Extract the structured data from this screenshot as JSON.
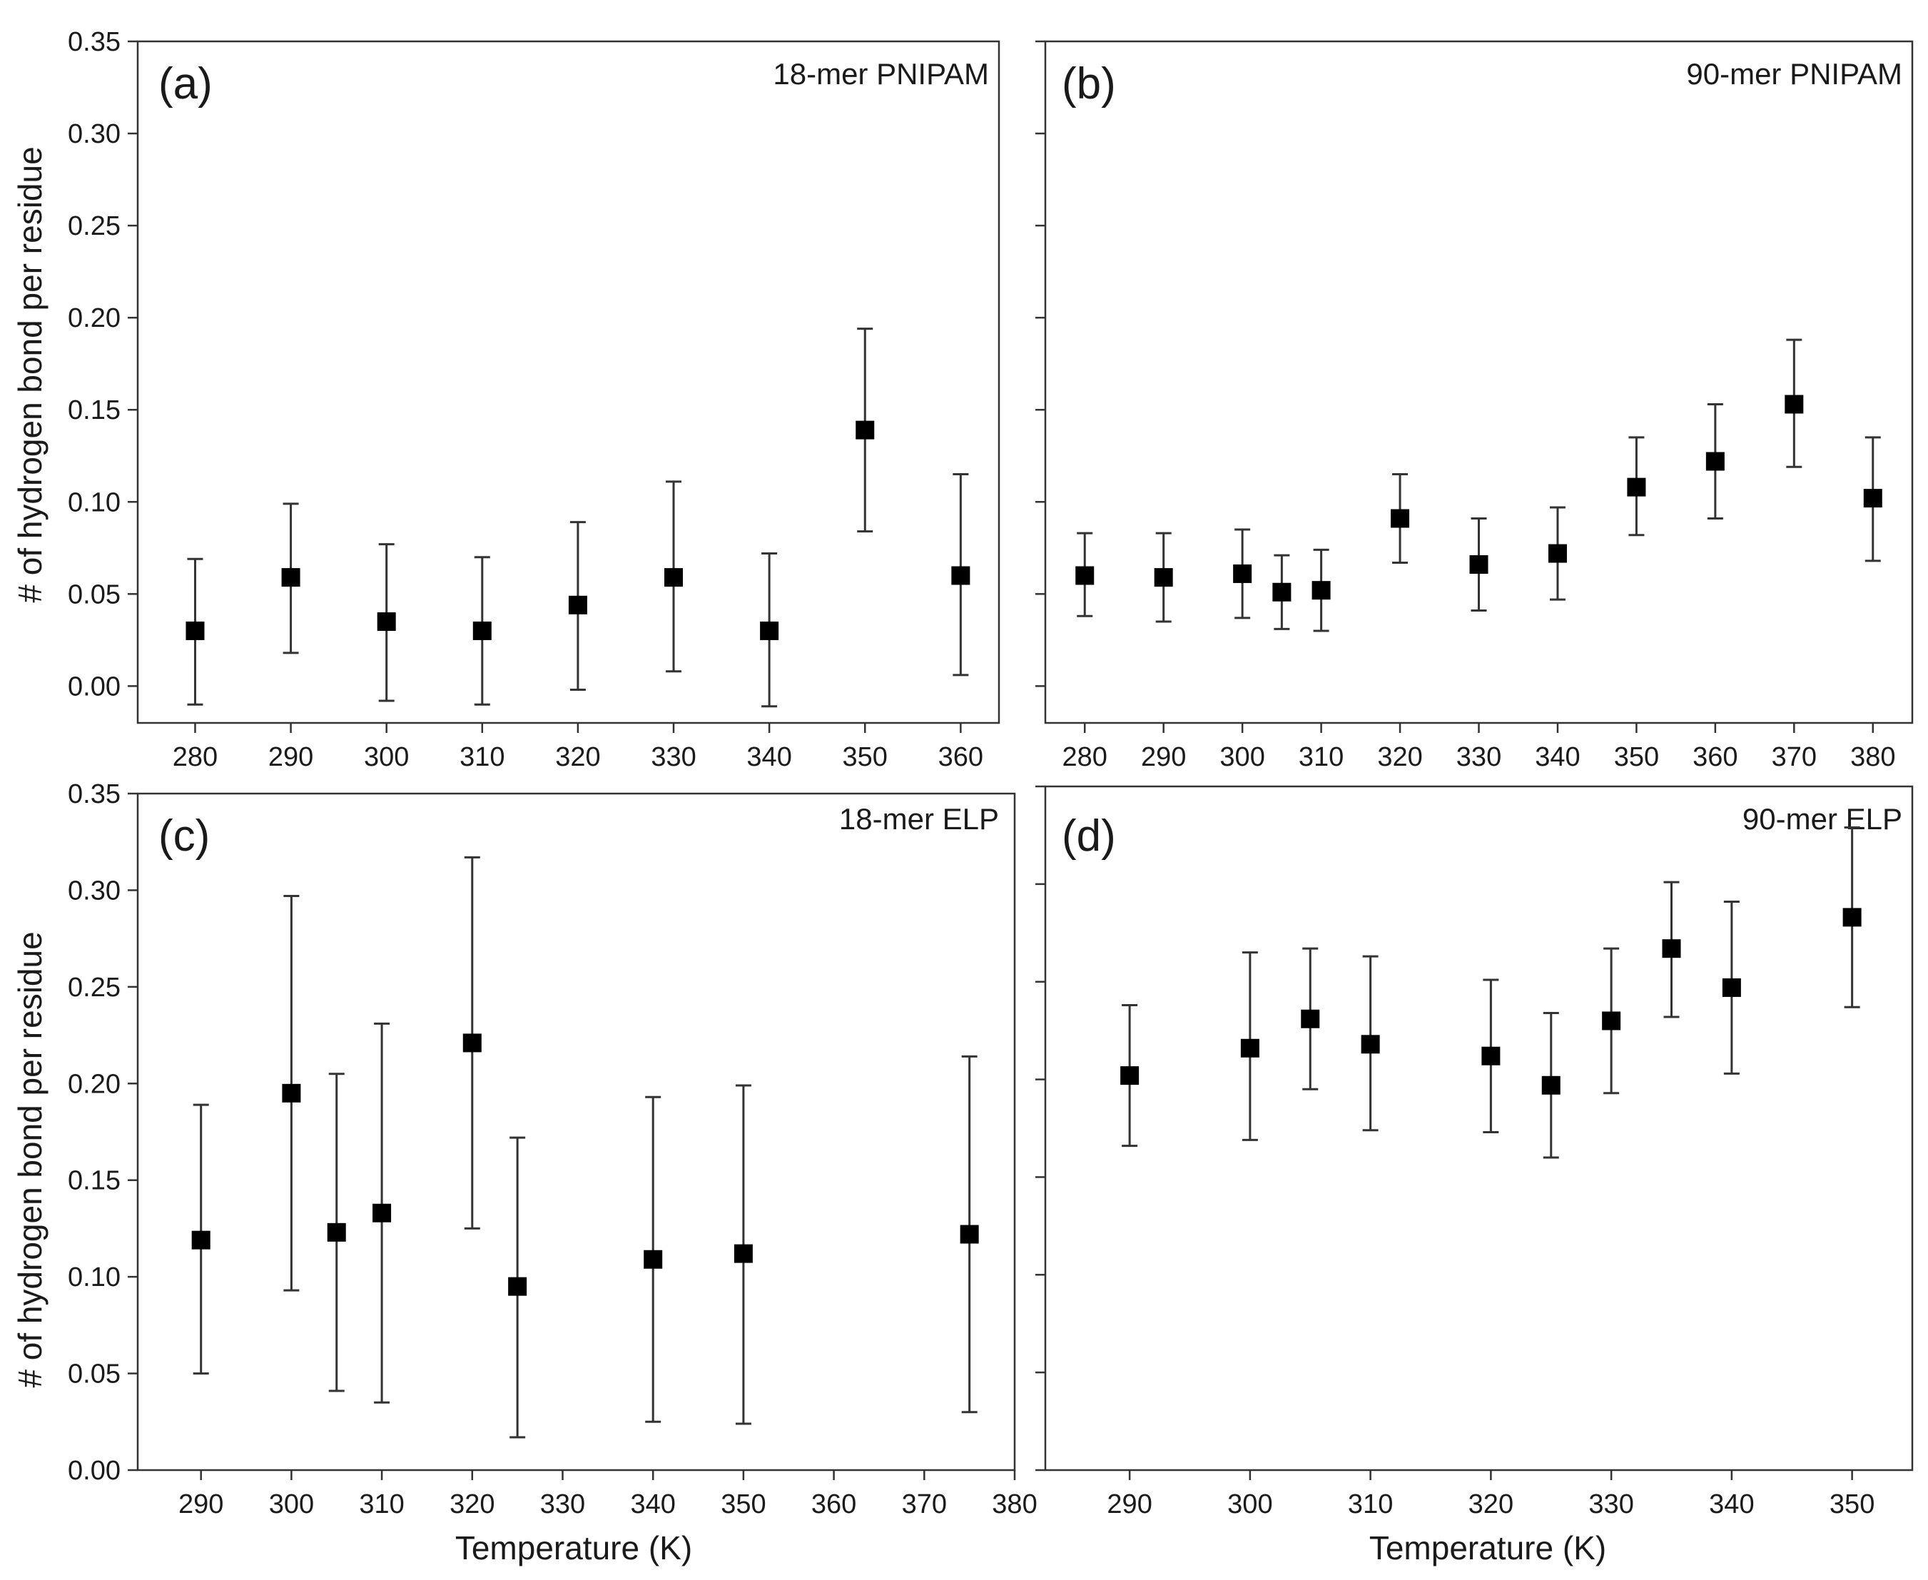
{
  "figure": {
    "shared_xlabel": "Temperature (K)",
    "shared_ylabel": "# of hydrogen bond per residue"
  },
  "chart_data": [
    {
      "type": "scatter",
      "panel": "(a)",
      "title": "18-mer PNIPAM",
      "xlabel": "",
      "ylabel": "# of hydrogen bond per residue",
      "xlim": [
        274,
        364
      ],
      "ylim": [
        -0.02,
        0.35
      ],
      "xticks": [
        280,
        290,
        300,
        310,
        320,
        330,
        340,
        350,
        360
      ],
      "yticks": [
        "0.00",
        "0.05",
        "0.10",
        "0.15",
        "0.20",
        "0.25",
        "0.30",
        "0.35"
      ],
      "grid": false,
      "x": [
        280,
        290,
        300,
        310,
        320,
        330,
        340,
        350,
        360
      ],
      "y": [
        0.03,
        0.059,
        0.035,
        0.03,
        0.044,
        0.059,
        0.03,
        0.139,
        0.06
      ],
      "err_low": [
        -0.01,
        0.018,
        -0.008,
        -0.01,
        -0.002,
        0.008,
        -0.011,
        0.084,
        0.006
      ],
      "err_high": [
        0.069,
        0.099,
        0.077,
        0.07,
        0.089,
        0.111,
        0.072,
        0.194,
        0.115
      ]
    },
    {
      "type": "scatter",
      "panel": "(b)",
      "title": "90-mer PNIPAM",
      "xlabel": "",
      "ylabel": "",
      "xlim": [
        275,
        385
      ],
      "ylim": [
        -0.02,
        0.35
      ],
      "xticks": [
        280,
        290,
        300,
        310,
        320,
        330,
        340,
        350,
        360,
        370,
        380
      ],
      "yticks": [],
      "grid": false,
      "x": [
        280,
        290,
        300,
        305,
        310,
        320,
        330,
        340,
        350,
        360,
        370,
        380
      ],
      "y": [
        0.06,
        0.059,
        0.061,
        0.051,
        0.052,
        0.091,
        0.066,
        0.072,
        0.108,
        0.122,
        0.153,
        0.102
      ],
      "err_low": [
        0.038,
        0.035,
        0.037,
        0.031,
        0.03,
        0.067,
        0.041,
        0.047,
        0.082,
        0.091,
        0.119,
        0.068
      ],
      "err_high": [
        0.083,
        0.083,
        0.085,
        0.071,
        0.074,
        0.115,
        0.091,
        0.097,
        0.135,
        0.153,
        0.188,
        0.135
      ]
    },
    {
      "type": "scatter",
      "panel": "(c)",
      "title": "18-mer ELP",
      "xlabel": "Temperature (K)",
      "ylabel": "# of hydrogen bond per residue",
      "xlim": [
        283,
        380
      ],
      "ylim": [
        0.0,
        0.35
      ],
      "xticks": [
        290,
        300,
        310,
        320,
        330,
        340,
        350,
        360,
        370,
        380
      ],
      "yticks": [
        "0.00",
        "0.05",
        "0.10",
        "0.15",
        "0.20",
        "0.25",
        "0.30",
        "0.35"
      ],
      "grid": false,
      "x": [
        290,
        300,
        305,
        310,
        320,
        325,
        340,
        350,
        375
      ],
      "y": [
        0.119,
        0.195,
        0.123,
        0.133,
        0.221,
        0.095,
        0.109,
        0.112,
        0.122
      ],
      "err_low": [
        0.05,
        0.093,
        0.041,
        0.035,
        0.125,
        0.017,
        0.025,
        0.024,
        0.03
      ],
      "err_high": [
        0.189,
        0.297,
        0.205,
        0.231,
        0.317,
        0.172,
        0.193,
        0.199,
        0.214
      ]
    },
    {
      "type": "scatter",
      "panel": "(d)",
      "title": "90-mer ELP",
      "xlabel": "Temperature (K)",
      "ylabel": "",
      "xlim": [
        283,
        355
      ],
      "ylim": [
        0.0,
        0.35
      ],
      "xticks": [
        290,
        300,
        310,
        320,
        330,
        340,
        350
      ],
      "yticks": [],
      "grid": false,
      "x": [
        290,
        300,
        305,
        310,
        320,
        325,
        330,
        335,
        340,
        350
      ],
      "y": [
        0.202,
        0.216,
        0.231,
        0.218,
        0.212,
        0.197,
        0.23,
        0.267,
        0.247,
        0.283
      ],
      "err_low": [
        0.166,
        0.169,
        0.195,
        0.174,
        0.173,
        0.16,
        0.193,
        0.232,
        0.203,
        0.237
      ],
      "err_high": [
        0.238,
        0.265,
        0.267,
        0.263,
        0.251,
        0.234,
        0.267,
        0.301,
        0.291,
        0.329
      ]
    }
  ]
}
